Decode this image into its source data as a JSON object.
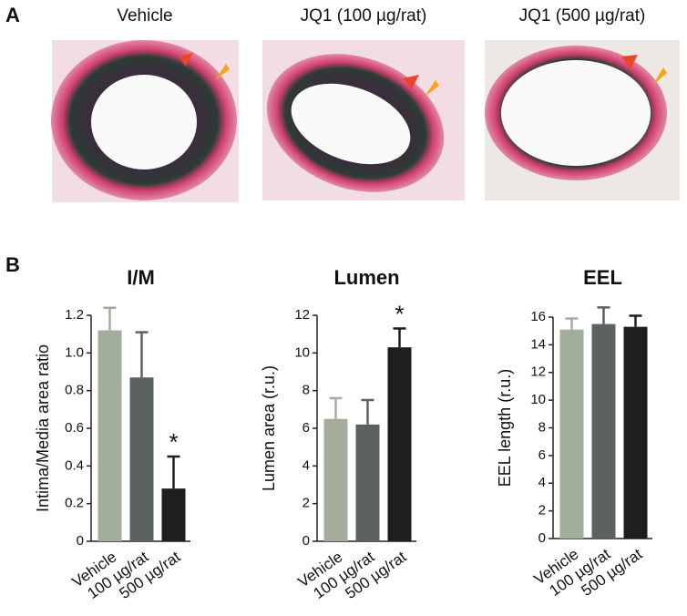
{
  "panels": {
    "a": "A",
    "b": "B"
  },
  "images": [
    "Vehicle",
    "JQ1 (100 µg/rat)",
    "JQ1 (500 µg/rat)"
  ],
  "chart_data": [
    {
      "type": "bar",
      "title": "I/M",
      "y_label": "Intima/Media area ratio",
      "categories": [
        "Vehicle",
        "100 µg/rat",
        "500 µg/rat"
      ],
      "values": [
        1.12,
        0.87,
        0.28
      ],
      "errors": [
        0.12,
        0.24,
        0.17
      ],
      "significance": [
        null,
        null,
        "*"
      ],
      "colors": [
        "#a3ad9b",
        "#5b6260",
        "#1e1e1e"
      ],
      "ylim": [
        0,
        1.2
      ],
      "yticks": [
        0,
        0.2,
        0.4,
        0.6,
        0.8,
        {
          "value": 1,
          "label": "1.0"
        },
        1.2
      ]
    },
    {
      "type": "bar",
      "title": "Lumen",
      "y_label": "Lumen area (r.u.)",
      "categories": [
        "Vehicle",
        "100 µg/rat",
        "500 µg/rat"
      ],
      "values": [
        6.5,
        6.2,
        10.3
      ],
      "errors": [
        1.1,
        1.3,
        1.0
      ],
      "significance": [
        null,
        null,
        "*"
      ],
      "colors": [
        "#a3ad9b",
        "#5b6260",
        "#1e1e1e"
      ],
      "ylim": [
        0,
        12
      ],
      "yticks": [
        0,
        2,
        4,
        6,
        8,
        10,
        12
      ]
    },
    {
      "type": "bar",
      "title": "EEL",
      "y_label": "EEL length (r.u.)",
      "categories": [
        "Vehicle",
        "100 µg/rat",
        "500 µg/rat"
      ],
      "values": [
        15.1,
        15.5,
        15.3
      ],
      "errors": [
        0.8,
        1.2,
        0.8
      ],
      "colors": [
        "#a3ad9b",
        "#5b6260",
        "#1e1e1e"
      ],
      "ylim": [
        0,
        16
      ],
      "yticks": [
        0,
        2,
        4,
        6,
        8,
        10,
        12,
        14,
        16
      ]
    }
  ]
}
